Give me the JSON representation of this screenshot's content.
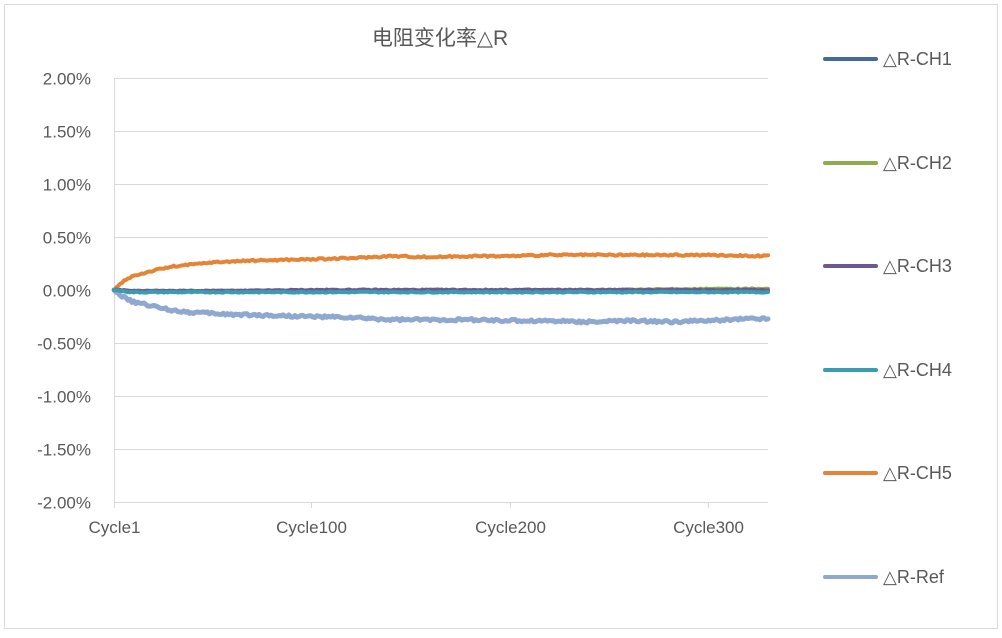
{
  "chart_data": {
    "type": "line",
    "title": "电阻变化率△R",
    "xlabel": "",
    "ylabel": "",
    "ylim": [
      -0.02,
      0.02
    ],
    "yticks": [
      "2.00%",
      "1.50%",
      "1.00%",
      "0.50%",
      "0.00%",
      "-0.50%",
      "-1.00%",
      "-1.50%",
      "-2.00%"
    ],
    "ytick_values": [
      0.02,
      0.015,
      0.01,
      0.005,
      0.0,
      -0.005,
      -0.01,
      -0.015,
      -0.02
    ],
    "xlim": [
      1,
      330
    ],
    "xticks": [
      "Cycle1",
      "Cycle100",
      "Cycle200",
      "Cycle300"
    ],
    "xtick_values": [
      1,
      100,
      200,
      300
    ],
    "grid": "horizontal",
    "legend_position": "right",
    "series": [
      {
        "name": "△R-CH1",
        "color": "#44699D",
        "points": [
          [
            1,
            0.0
          ],
          [
            10,
            -0.0001
          ],
          [
            30,
            -0.0001
          ],
          [
            60,
            -0.0001
          ],
          [
            100,
            -0.0001
          ],
          [
            150,
            -0.0001
          ],
          [
            200,
            -0.0001
          ],
          [
            250,
            -0.0001
          ],
          [
            300,
            -0.0001
          ],
          [
            330,
            -0.0001
          ]
        ]
      },
      {
        "name": "△R-CH2",
        "color": "#8DAD4C",
        "points": [
          [
            1,
            0.0
          ],
          [
            10,
            -0.0001
          ],
          [
            30,
            -0.0001
          ],
          [
            60,
            -0.0001
          ],
          [
            100,
            -0.0001
          ],
          [
            150,
            -0.0001
          ],
          [
            200,
            -0.0001
          ],
          [
            250,
            0.0
          ],
          [
            300,
            0.0001
          ],
          [
            330,
            0.0001
          ]
        ]
      },
      {
        "name": "△R-CH3",
        "color": "#6F578F",
        "points": [
          [
            1,
            0.0
          ],
          [
            10,
            -0.0001
          ],
          [
            30,
            -0.0001
          ],
          [
            60,
            -0.0001
          ],
          [
            100,
            0.0
          ],
          [
            150,
            0.0
          ],
          [
            200,
            0.0
          ],
          [
            250,
            0.0
          ],
          [
            300,
            0.0
          ],
          [
            330,
            0.0
          ]
        ]
      },
      {
        "name": "△R-CH4",
        "color": "#3B9BB0",
        "points": [
          [
            1,
            0.0
          ],
          [
            10,
            -0.0002
          ],
          [
            30,
            -0.0002
          ],
          [
            60,
            -0.0002
          ],
          [
            100,
            -0.0002
          ],
          [
            150,
            -0.0002
          ],
          [
            200,
            -0.0002
          ],
          [
            250,
            -0.0002
          ],
          [
            300,
            -0.0002
          ],
          [
            330,
            -0.0002
          ]
        ]
      },
      {
        "name": "△R-CH5",
        "color": "#E68436",
        "points": [
          [
            1,
            0.0
          ],
          [
            5,
            0.0007
          ],
          [
            10,
            0.0013
          ],
          [
            20,
            0.0018
          ],
          [
            30,
            0.0022
          ],
          [
            40,
            0.0024
          ],
          [
            50,
            0.0026
          ],
          [
            60,
            0.0027
          ],
          [
            75,
            0.0028
          ],
          [
            100,
            0.0029
          ],
          [
            120,
            0.003
          ],
          [
            140,
            0.0032
          ],
          [
            160,
            0.0031
          ],
          [
            180,
            0.0032
          ],
          [
            200,
            0.0032
          ],
          [
            220,
            0.0033
          ],
          [
            240,
            0.0033
          ],
          [
            260,
            0.0033
          ],
          [
            280,
            0.0033
          ],
          [
            300,
            0.0033
          ],
          [
            330,
            0.0032
          ]
        ]
      },
      {
        "name": "△R-Ref",
        "color": "#8FA8D0",
        "points": [
          [
            1,
            0.0
          ],
          [
            5,
            -0.0006
          ],
          [
            10,
            -0.0011
          ],
          [
            20,
            -0.0015
          ],
          [
            30,
            -0.0019
          ],
          [
            40,
            -0.0021
          ],
          [
            50,
            -0.0022
          ],
          [
            60,
            -0.0023
          ],
          [
            80,
            -0.0024
          ],
          [
            100,
            -0.0025
          ],
          [
            120,
            -0.0026
          ],
          [
            140,
            -0.0028
          ],
          [
            160,
            -0.0028
          ],
          [
            180,
            -0.0028
          ],
          [
            200,
            -0.0029
          ],
          [
            220,
            -0.0029
          ],
          [
            240,
            -0.003
          ],
          [
            260,
            -0.0029
          ],
          [
            280,
            -0.003
          ],
          [
            300,
            -0.0029
          ],
          [
            320,
            -0.0027
          ],
          [
            330,
            -0.0027
          ]
        ]
      }
    ]
  }
}
